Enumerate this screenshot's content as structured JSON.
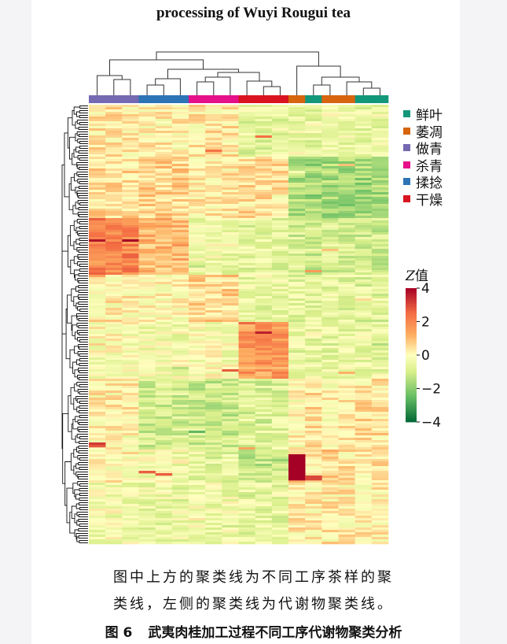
{
  "header": {
    "title": "processing of Wuyi Rougui tea"
  },
  "figure": {
    "legend": [
      {
        "label": "鲜叶",
        "color": "#12977a"
      },
      {
        "label": "萎凋",
        "color": "#d7650e"
      },
      {
        "label": "做青",
        "color": "#7569b1"
      },
      {
        "label": "杀青",
        "color": "#e5108a"
      },
      {
        "label": "揉捻",
        "color": "#2c74b5"
      },
      {
        "label": "干燥",
        "color": "#d9131f"
      }
    ],
    "colorbar": {
      "title_italic": "Z",
      "title_rest": "值",
      "ticks": [
        "4",
        "2",
        "0",
        "−2",
        "−4"
      ]
    }
  },
  "caption": {
    "line1": "图中上方的聚类线为不同工序茶样的聚",
    "line2": "类线，左侧的聚类线为代谢物聚类线。"
  },
  "figure_title": {
    "number": "图 6",
    "text": "武夷肉桂加工过程不同工序代谢物聚类分析"
  }
}
